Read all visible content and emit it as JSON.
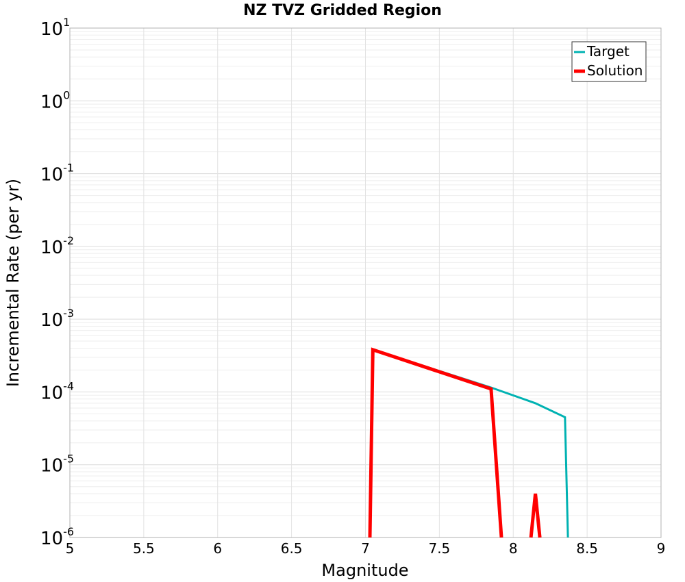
{
  "chart_data": {
    "type": "line",
    "title": "NZ TVZ Gridded Region",
    "xlabel": "Magnitude",
    "ylabel": "Incremental Rate (per yr)",
    "xlim": [
      5,
      9
    ],
    "ylim": [
      1e-06,
      10
    ],
    "yscale": "log",
    "grid": true,
    "legend_position": "top-right",
    "x_ticks": [
      "5",
      "5.5",
      "6",
      "6.5",
      "7",
      "7.5",
      "8",
      "8.5",
      "9"
    ],
    "y_ticks": [
      {
        "base": "10",
        "exp": "1",
        "value": 10
      },
      {
        "base": "10",
        "exp": "0",
        "value": 1
      },
      {
        "base": "10",
        "exp": "-1",
        "value": 0.1
      },
      {
        "base": "10",
        "exp": "-2",
        "value": 0.01
      },
      {
        "base": "10",
        "exp": "-3",
        "value": 0.001
      },
      {
        "base": "10",
        "exp": "-4",
        "value": 0.0001
      },
      {
        "base": "10",
        "exp": "-5",
        "value": 1e-05
      },
      {
        "base": "10",
        "exp": "-6",
        "value": 1e-06
      }
    ],
    "series": [
      {
        "name": "Target",
        "color": "#00b2b2",
        "x": [
          7.03,
          7.05,
          7.85,
          8.15,
          8.35,
          8.37
        ],
        "y": [
          1e-06,
          0.00038,
          0.000115,
          7e-05,
          4.5e-05,
          1e-06
        ]
      },
      {
        "name": "Solution",
        "color": "#ff0000",
        "x": [
          7.03,
          7.05,
          7.85,
          7.92,
          null,
          8.12,
          8.15,
          8.18
        ],
        "y": [
          1e-06,
          0.00038,
          0.00011,
          1e-06,
          null,
          1e-06,
          4e-06,
          1e-06
        ]
      }
    ]
  }
}
